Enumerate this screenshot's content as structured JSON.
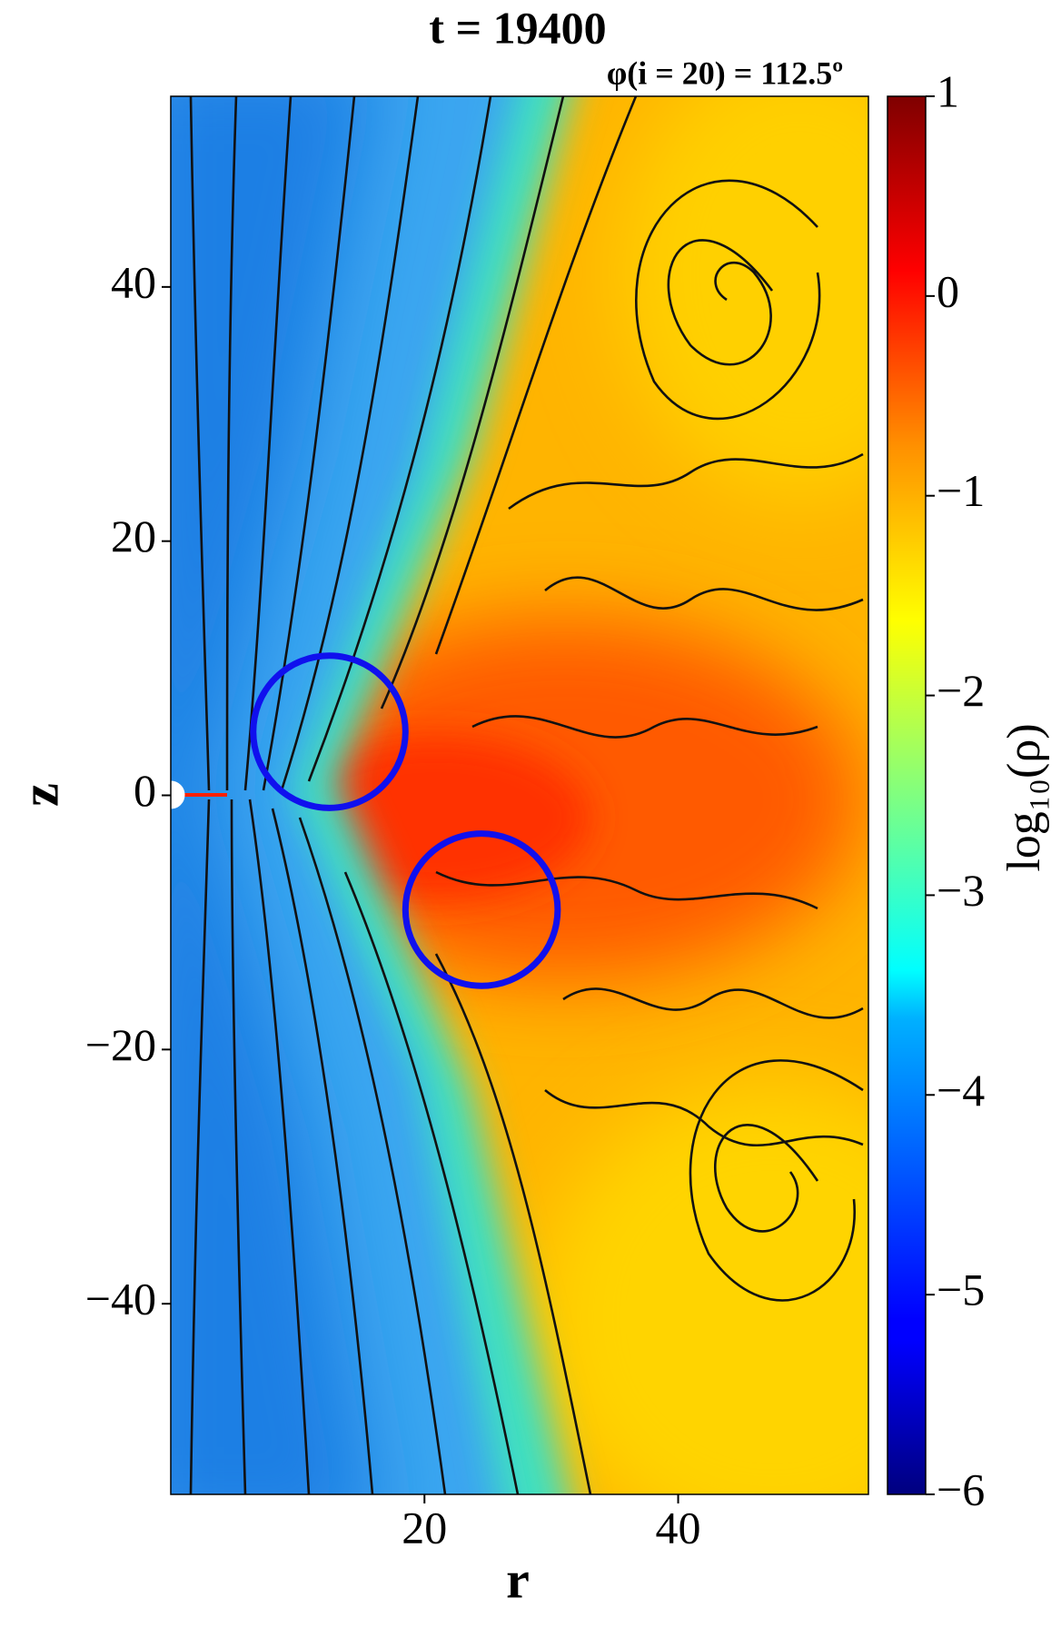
{
  "chart_data": {
    "type": "density-map",
    "title": "t = 19400",
    "subtitle": "φ(i = 20) = 112.5º",
    "x_label": "r",
    "y_label": "z",
    "colorbar_label": "log₁₀(ρ)",
    "colormap": "jet",
    "xlim": [
      0,
      55
    ],
    "xticks": [
      20,
      40
    ],
    "ylim": [
      -55,
      55
    ],
    "yticks": [
      -40,
      -20,
      0,
      20,
      40
    ],
    "clim": [
      -6,
      1
    ],
    "cticks": [
      -6,
      -5,
      -4,
      -3,
      -2,
      -1,
      0,
      1
    ],
    "circles": [
      {
        "r": 12.5,
        "z": 5,
        "radius": 6,
        "color": "#1010ee"
      },
      {
        "r": 24.5,
        "z": -9,
        "radius": 6,
        "color": "#1010ee"
      }
    ]
  }
}
